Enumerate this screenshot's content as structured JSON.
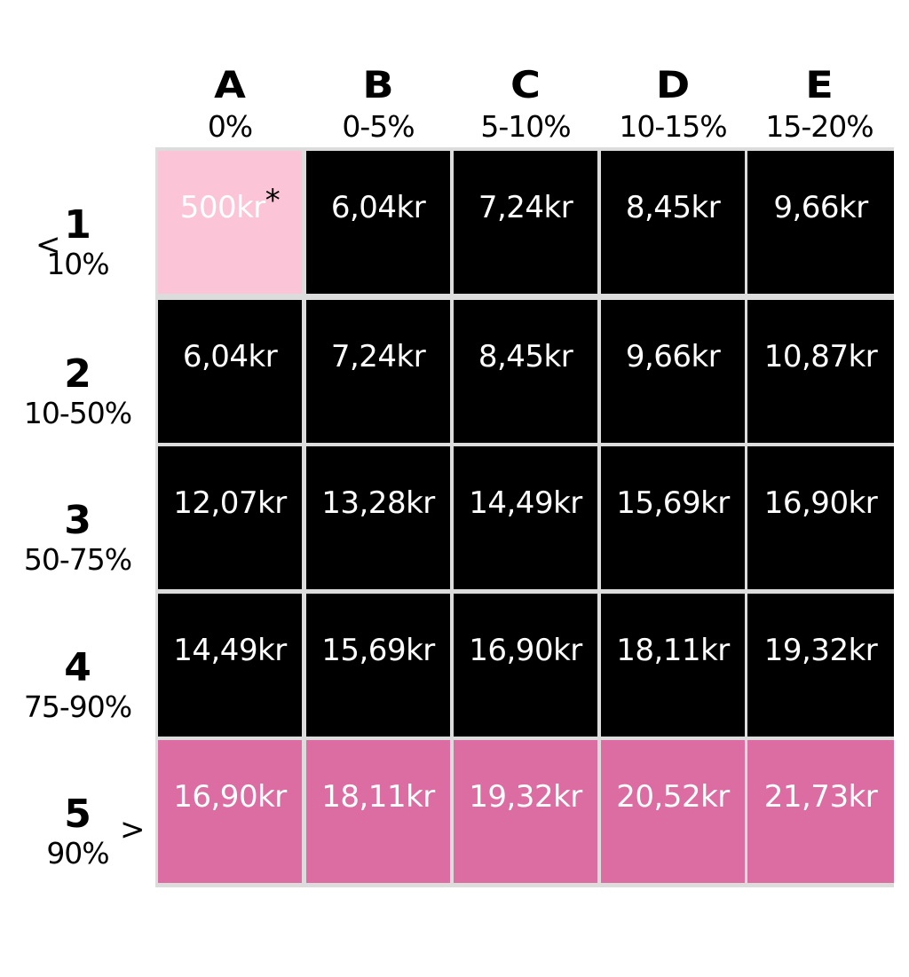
{
  "chart_data": {
    "type": "table",
    "columns": [
      {
        "letter": "A",
        "range": "0%"
      },
      {
        "letter": "B",
        "range": "0-5%"
      },
      {
        "letter": "C",
        "range": "5-10%"
      },
      {
        "letter": "D",
        "range": "10-15%"
      },
      {
        "letter": "E",
        "range": "15-20%"
      }
    ],
    "rows": [
      {
        "number": "1",
        "range": "10%",
        "values": [
          "500kr",
          "6,04kr",
          "7,24kr",
          "8,45kr",
          "9,66kr"
        ],
        "styles": [
          "light-pink",
          "dark",
          "dark",
          "dark",
          "dark"
        ]
      },
      {
        "number": "2",
        "range": "10-50%",
        "values": [
          "6,04kr",
          "7,24kr",
          "8,45kr",
          "9,66kr",
          "10,87kr"
        ],
        "styles": [
          "dark",
          "dark",
          "dark",
          "dark",
          "dark"
        ]
      },
      {
        "number": "3",
        "range": "50-75%",
        "values": [
          "12,07kr",
          "13,28kr",
          "14,49kr",
          "15,69kr",
          "16,90kr"
        ],
        "styles": [
          "dark",
          "dark",
          "dark",
          "dark",
          "dark"
        ]
      },
      {
        "number": "4",
        "range": "75-90%",
        "values": [
          "14,49kr",
          "15,69kr",
          "16,90kr",
          "18,11kr",
          "19,32kr"
        ],
        "styles": [
          "dark",
          "dark",
          "dark",
          "dark",
          "dark"
        ]
      },
      {
        "number": "5",
        "range": "90%",
        "values": [
          "16,90kr",
          "18,11kr",
          "19,32kr",
          "20,52kr",
          "21,73kr"
        ],
        "styles": [
          "pink",
          "pink",
          "pink",
          "pink",
          "pink"
        ]
      }
    ],
    "footnote_marker": "*",
    "arrows": {
      "top": "<",
      "bottom": ">"
    },
    "colors": {
      "dark": "#000000",
      "light_pink": "#fcc4d7",
      "pink": "#db6da3",
      "grid_gap": "#dcdcdc",
      "cell_text": "#ffffff"
    }
  }
}
